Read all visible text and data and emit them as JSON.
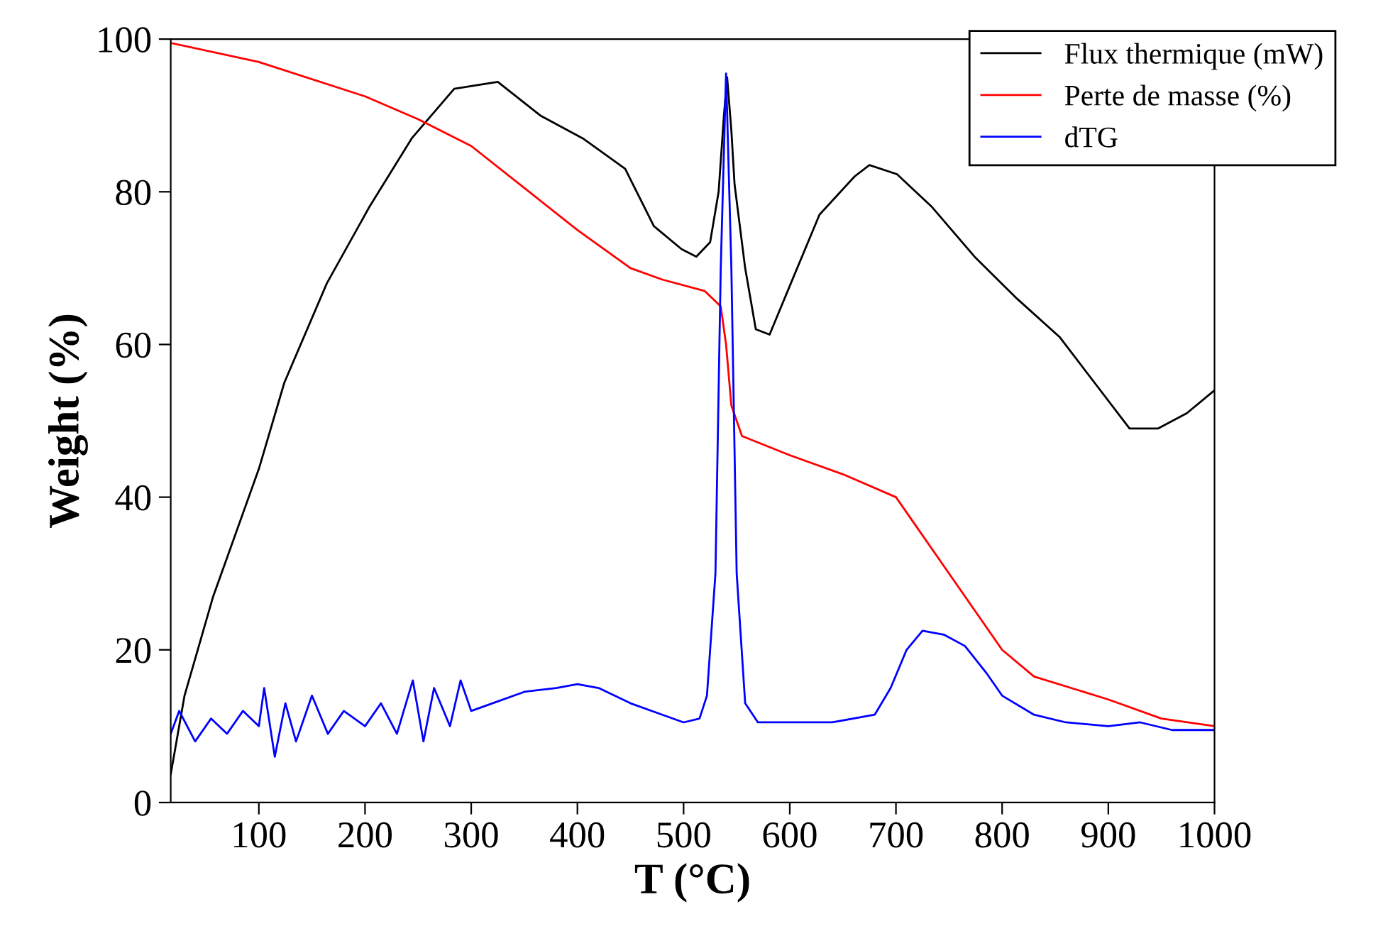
{
  "chart_data": {
    "type": "line",
    "xlabel": "T (°C)",
    "ylabel": "Weight (%)",
    "xlim": [
      17,
      1000
    ],
    "ylim": [
      0,
      100
    ],
    "xticks": [
      100,
      200,
      300,
      400,
      500,
      600,
      700,
      800,
      900,
      1000
    ],
    "yticks": [
      0,
      20,
      40,
      60,
      80,
      100
    ],
    "grid": false,
    "legend": "top right",
    "marker": "none",
    "line_style": "solid",
    "series": [
      {
        "name": "Flux thermique (mW)",
        "color": "#000000",
        "x": [
          17,
          30,
          57,
          100,
          124,
          164,
          204,
          244,
          284,
          325,
          365,
          405,
          445,
          472,
          498,
          512,
          525,
          533,
          538,
          541,
          545,
          548,
          558,
          568,
          581,
          601,
          628,
          661,
          675,
          701,
          734,
          774,
          814,
          854,
          887,
          920,
          947,
          974,
          1000
        ],
        "values": [
          3.7,
          14,
          27,
          43.7,
          55,
          68,
          78,
          87,
          93.5,
          94.4,
          90,
          87,
          83,
          75.5,
          72.5,
          71.5,
          73.4,
          80,
          90,
          95,
          88,
          81,
          70,
          62,
          61.3,
          68,
          77,
          82,
          83.5,
          82.3,
          78,
          71.5,
          66,
          61,
          55,
          49,
          49,
          51,
          54
        ]
      },
      {
        "name": "Perte de masse (%)",
        "color": "#ff0000",
        "x": [
          17,
          100,
          200,
          250,
          300,
          350,
          400,
          450,
          480,
          520,
          535,
          540,
          545,
          555,
          600,
          650,
          700,
          720,
          750,
          800,
          830,
          900,
          950,
          1000
        ],
        "values": [
          99.5,
          97,
          92.5,
          89.5,
          86,
          80.5,
          75,
          70,
          68.5,
          67,
          65,
          60,
          52,
          48,
          45.5,
          43,
          40,
          36,
          30,
          20,
          16.5,
          13.5,
          11,
          10
        ]
      },
      {
        "name": "dTG",
        "color": "#0000ff",
        "x": [
          17,
          25,
          40,
          55,
          70,
          85,
          100,
          105,
          115,
          125,
          135,
          150,
          165,
          180,
          200,
          215,
          230,
          245,
          255,
          265,
          280,
          290,
          300,
          320,
          350,
          380,
          400,
          420,
          450,
          480,
          500,
          515,
          522,
          530,
          535,
          540,
          545,
          550,
          558,
          570,
          600,
          640,
          680,
          695,
          710,
          725,
          745,
          765,
          785,
          800,
          830,
          860,
          900,
          930,
          960,
          1000
        ],
        "values": [
          9,
          12,
          8,
          11,
          9,
          12,
          10,
          15,
          6,
          13,
          8,
          14,
          9,
          12,
          10,
          13,
          9,
          16,
          8,
          15,
          10,
          16,
          12,
          13,
          14.5,
          15,
          15.5,
          15,
          13,
          11.5,
          10.5,
          11,
          14,
          30,
          70,
          95.5,
          70,
          30,
          13,
          10.5,
          10.5,
          10.5,
          11.5,
          15,
          20,
          22.5,
          22,
          20.5,
          17,
          14,
          11.5,
          10.5,
          10,
          10.5,
          9.5,
          9.5
        ]
      }
    ]
  }
}
